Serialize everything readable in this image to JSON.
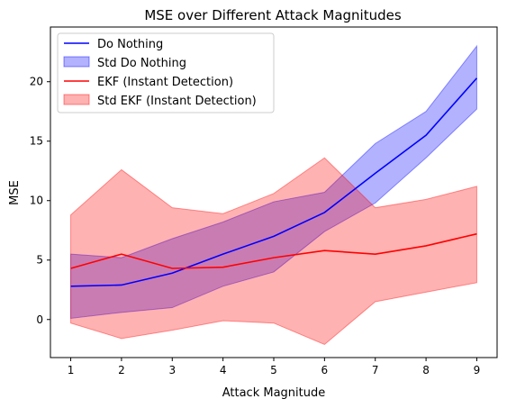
{
  "chart_data": {
    "type": "line",
    "title": "MSE over Different Attack Magnitudes",
    "xlabel": "Attack Magnitude",
    "ylabel": "MSE",
    "x": [
      1,
      2,
      3,
      4,
      5,
      6,
      7,
      8,
      9
    ],
    "xlim": [
      0.6,
      9.4
    ],
    "ylim": [
      -3.2,
      24.6
    ],
    "xticks": [
      1,
      2,
      3,
      4,
      5,
      6,
      7,
      8,
      9
    ],
    "yticks": [
      0,
      5,
      10,
      15,
      20
    ],
    "grid": false,
    "legend_position": "top-left",
    "series": [
      {
        "name": "Do Nothing",
        "std_name": "Std Do Nothing",
        "color": "#0000ff",
        "values": [
          2.8,
          2.9,
          3.9,
          5.5,
          7.0,
          9.0,
          12.3,
          15.5,
          20.3
        ],
        "lower": [
          0.1,
          0.6,
          1.0,
          2.8,
          4.0,
          7.4,
          9.8,
          13.6,
          17.7
        ],
        "upper": [
          5.5,
          5.2,
          6.8,
          8.2,
          9.9,
          10.7,
          14.8,
          17.5,
          23.0
        ]
      },
      {
        "name": "EKF (Instant Detection)",
        "std_name": "Std EKF (Instant Detection)",
        "color": "#ff0000",
        "values": [
          4.3,
          5.5,
          4.3,
          4.4,
          5.2,
          5.8,
          5.5,
          6.2,
          7.2
        ],
        "lower": [
          -0.3,
          -1.6,
          -0.9,
          -0.1,
          -0.3,
          -2.1,
          1.5,
          2.3,
          3.1
        ],
        "upper": [
          8.8,
          12.6,
          9.4,
          8.9,
          10.6,
          13.6,
          9.4,
          10.1,
          11.2
        ]
      }
    ]
  }
}
